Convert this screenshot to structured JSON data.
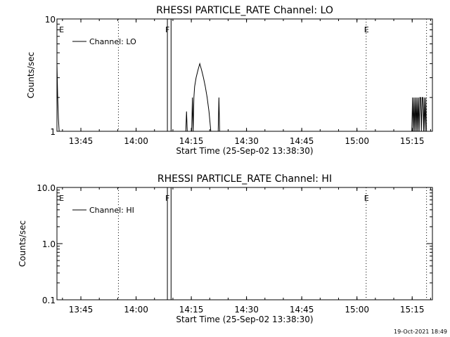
{
  "timestamp": "19-Oct-2021 18:49",
  "chart_data": [
    {
      "type": "line",
      "title": "RHESSI PARTICLE_RATE Channel: LO",
      "xlabel": "Start Time (25-Sep-02 13:38:30)",
      "ylabel": "Counts/sec",
      "x_unit": "minutes after 13:38:30",
      "xlim": [
        0,
        102
      ],
      "ylog": true,
      "ylim": [
        1,
        10
      ],
      "x_ticks": [
        {
          "value": 6.5,
          "label": "13:45"
        },
        {
          "value": 21.5,
          "label": "14:00"
        },
        {
          "value": 36.5,
          "label": "14:15"
        },
        {
          "value": 51.5,
          "label": "14:30"
        },
        {
          "value": 66.5,
          "label": "14:45"
        },
        {
          "value": 81.5,
          "label": "15:00"
        },
        {
          "value": 96.5,
          "label": "15:15"
        }
      ],
      "y_ticks": [
        {
          "value": 1,
          "label": "1"
        },
        {
          "value": 10,
          "label": "10"
        }
      ],
      "legend": {
        "position": "top-left",
        "entries": [
          "Channel: LO"
        ]
      },
      "flags": [
        {
          "x": 0.4,
          "label": "E",
          "line": "none"
        },
        {
          "x": 16.7,
          "label": "",
          "line": "dotted"
        },
        {
          "x": 30.0,
          "label": "F",
          "line": "solid"
        },
        {
          "x": 31.0,
          "label": "",
          "line": "solid"
        },
        {
          "x": 84.0,
          "label": "E",
          "line": "dotted"
        },
        {
          "x": 100.4,
          "label": "",
          "line": "dotted"
        }
      ],
      "series": [
        {
          "name": "Channel: LO",
          "color": "#000000",
          "points": [
            [
              0.0,
              4.0
            ],
            [
              0.2,
              2.0
            ],
            [
              0.4,
              1.3
            ],
            [
              0.6,
              1.0
            ],
            [
              35.0,
              1.0
            ],
            [
              35.2,
              1.5
            ],
            [
              35.4,
              1.0
            ],
            [
              36.6,
              1.0
            ],
            [
              36.8,
              2.0
            ],
            [
              37.0,
              1.0
            ],
            [
              37.2,
              2.0
            ],
            [
              37.4,
              2.5
            ],
            [
              37.8,
              3.0
            ],
            [
              38.3,
              3.5
            ],
            [
              38.8,
              4.0
            ],
            [
              39.3,
              3.5
            ],
            [
              39.8,
              3.0
            ],
            [
              40.3,
              2.5
            ],
            [
              40.8,
              2.0
            ],
            [
              41.3,
              1.5
            ],
            [
              41.8,
              1.0
            ],
            [
              43.8,
              1.0
            ],
            [
              44.0,
              2.0
            ],
            [
              44.2,
              1.0
            ],
            [
              96.4,
              1.0
            ],
            [
              96.6,
              2.0
            ],
            [
              96.8,
              1.0
            ],
            [
              97.0,
              2.0
            ],
            [
              97.2,
              1.0
            ],
            [
              97.4,
              2.0
            ],
            [
              97.6,
              1.0
            ],
            [
              97.8,
              2.0
            ],
            [
              98.0,
              1.0
            ],
            [
              98.2,
              2.0
            ],
            [
              98.4,
              1.0
            ],
            [
              98.6,
              2.0
            ],
            [
              98.8,
              2.0
            ],
            [
              99.0,
              1.0
            ],
            [
              99.2,
              2.0
            ],
            [
              99.4,
              2.0
            ],
            [
              99.6,
              1.0
            ],
            [
              99.8,
              2.0
            ],
            [
              100.0,
              1.0
            ],
            [
              100.2,
              2.0
            ],
            [
              100.4,
              1.0
            ]
          ]
        }
      ]
    },
    {
      "type": "line",
      "title": "RHESSI PARTICLE_RATE Channel: HI",
      "xlabel": "Start Time (25-Sep-02 13:38:30)",
      "ylabel": "Counts/sec",
      "x_unit": "minutes after 13:38:30",
      "xlim": [
        0,
        102
      ],
      "ylog": true,
      "ylim": [
        0.1,
        10
      ],
      "x_ticks": [
        {
          "value": 6.5,
          "label": "13:45"
        },
        {
          "value": 21.5,
          "label": "14:00"
        },
        {
          "value": 36.5,
          "label": "14:15"
        },
        {
          "value": 51.5,
          "label": "14:30"
        },
        {
          "value": 66.5,
          "label": "14:45"
        },
        {
          "value": 81.5,
          "label": "15:00"
        },
        {
          "value": 96.5,
          "label": "15:15"
        }
      ],
      "y_ticks": [
        {
          "value": 0.1,
          "label": "0.1"
        },
        {
          "value": 1,
          "label": "1.0"
        },
        {
          "value": 10,
          "label": "10.0"
        }
      ],
      "legend": {
        "position": "top-left",
        "entries": [
          "Channel: HI"
        ]
      },
      "flags": [
        {
          "x": 0.4,
          "label": "E",
          "line": "none"
        },
        {
          "x": 16.7,
          "label": "",
          "line": "dotted"
        },
        {
          "x": 30.0,
          "label": "F",
          "line": "solid"
        },
        {
          "x": 31.0,
          "label": "",
          "line": "solid"
        },
        {
          "x": 84.0,
          "label": "E",
          "line": "dotted"
        },
        {
          "x": 100.4,
          "label": "",
          "line": "dotted"
        }
      ],
      "series": [
        {
          "name": "Channel: HI",
          "color": "#000000",
          "points": []
        }
      ]
    }
  ]
}
